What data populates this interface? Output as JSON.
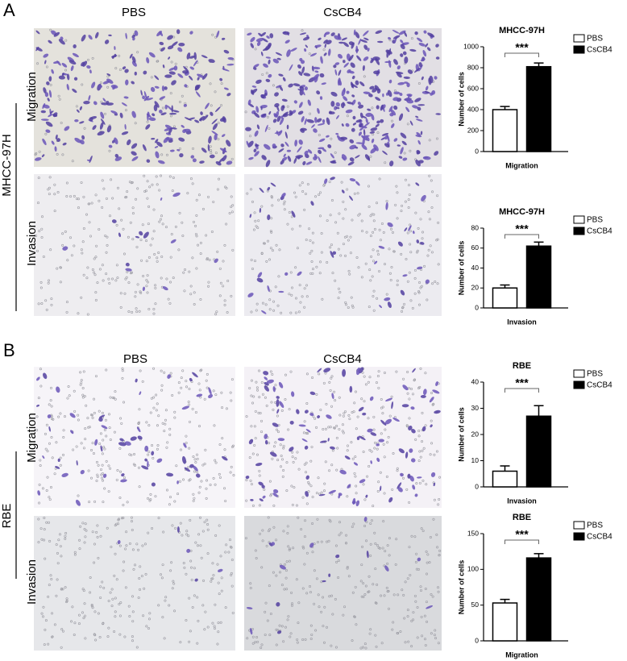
{
  "panels": [
    {
      "label": "A",
      "columns": [
        "PBS",
        "CsCB4"
      ],
      "rows": [
        "Migration",
        "Invasion"
      ],
      "group": "MHCC-97H"
    },
    {
      "label": "B",
      "columns": [
        "PBS",
        "CsCB4"
      ],
      "rows": [
        "Migration",
        "Invasion"
      ],
      "group": "RBE"
    }
  ],
  "chart_data": [
    {
      "type": "bar",
      "title": "MHCC-97H",
      "ylabel": "Number of cells",
      "categories": [
        "Migration"
      ],
      "annotation": "***",
      "ylim": [
        0,
        1000
      ],
      "yticks": [
        0,
        200,
        400,
        600,
        800,
        1000
      ],
      "series": [
        {
          "name": "PBS",
          "color": "#ffffff",
          "values": [
            400
          ],
          "errors": [
            30
          ]
        },
        {
          "name": "CsCB4",
          "color": "#000000",
          "values": [
            810
          ],
          "errors": [
            35
          ]
        }
      ]
    },
    {
      "type": "bar",
      "title": "MHCC-97H",
      "ylabel": "Number of cells",
      "categories": [
        "Invasion"
      ],
      "annotation": "***",
      "ylim": [
        0,
        80
      ],
      "yticks": [
        0,
        20,
        40,
        60,
        80
      ],
      "series": [
        {
          "name": "PBS",
          "color": "#ffffff",
          "values": [
            20
          ],
          "errors": [
            3
          ]
        },
        {
          "name": "CsCB4",
          "color": "#000000",
          "values": [
            62
          ],
          "errors": [
            4
          ]
        }
      ]
    },
    {
      "type": "bar",
      "title": "RBE",
      "ylabel": "Number of cells",
      "categories": [
        "Invasion"
      ],
      "annotation": "***",
      "ylim": [
        0,
        40
      ],
      "yticks": [
        0,
        10,
        20,
        30,
        40
      ],
      "series": [
        {
          "name": "PBS",
          "color": "#ffffff",
          "values": [
            6
          ],
          "errors": [
            2
          ]
        },
        {
          "name": "CsCB4",
          "color": "#000000",
          "values": [
            27
          ],
          "errors": [
            4
          ]
        }
      ]
    },
    {
      "type": "bar",
      "title": "RBE",
      "ylabel": "Number of cells",
      "categories": [
        "Migration"
      ],
      "annotation": "***",
      "ylim": [
        0,
        150
      ],
      "yticks": [
        0,
        50,
        100,
        150
      ],
      "series": [
        {
          "name": "PBS",
          "color": "#ffffff",
          "values": [
            53
          ],
          "errors": [
            5
          ]
        },
        {
          "name": "CsCB4",
          "color": "#000000",
          "values": [
            116
          ],
          "errors": [
            6
          ]
        }
      ]
    }
  ]
}
